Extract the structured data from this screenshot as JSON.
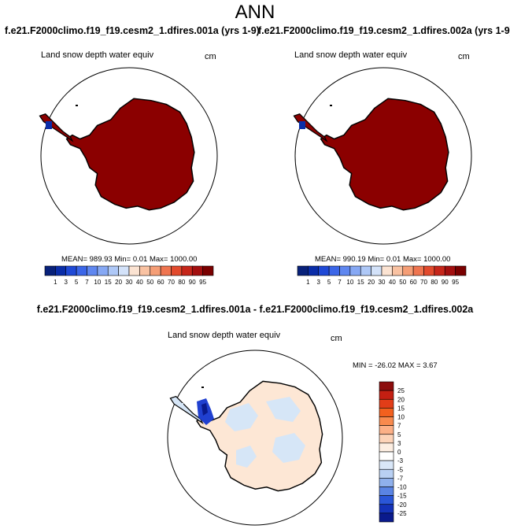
{
  "page": {
    "title": "ANN",
    "case_left": "f.e21.F2000climo.f19_f19.cesm2_1.dfires.001a (yrs 1-9)",
    "case_right": "f.e21.F2000climo.f19_f19.cesm2_1.dfires.002a (yrs 1-9)",
    "diff_title": "f.e21.F2000climo.f19_f19.cesm2_1.dfires.001a - f.e21.F2000climo.f19_f19.cesm2_1.dfires.002a"
  },
  "colors": {
    "land_max": "#8b0000",
    "diff_positive": "#fde7d5",
    "diff_negative": "#d6e6f7",
    "diff_strong_negative": "#2040d0",
    "outline": "#000000"
  },
  "chart_data": [
    {
      "type": "heatmap",
      "variable": "Land snow depth water equiv",
      "units": "cm",
      "projection": "south polar stereographic",
      "stats": "MEAN= 989.93  Min=   0.01  Max= 1000.00",
      "mean": 989.93,
      "min": 0.01,
      "max": 1000.0,
      "colorbar": {
        "labels": [
          "1",
          "3",
          "5",
          "7",
          "10",
          "15",
          "20",
          "30",
          "40",
          "50",
          "60",
          "70",
          "80",
          "90",
          "95"
        ],
        "colors": [
          "#08217a",
          "#0a2da8",
          "#1f49d6",
          "#3b66e8",
          "#5f87f0",
          "#86a8f4",
          "#aec8f7",
          "#d3e2f9",
          "#fbe3d2",
          "#f9c2a2",
          "#f59e76",
          "#ef7550",
          "#e24a2d",
          "#c6261a",
          "#a30f0f",
          "#7a0000"
        ]
      }
    },
    {
      "type": "heatmap",
      "variable": "Land snow depth water equiv",
      "units": "cm",
      "projection": "south polar stereographic",
      "stats": "MEAN= 990.19  Min=   0.01  Max= 1000.00",
      "mean": 990.19,
      "min": 0.01,
      "max": 1000.0,
      "colorbar": {
        "labels": [
          "1",
          "3",
          "5",
          "7",
          "10",
          "15",
          "20",
          "30",
          "40",
          "50",
          "60",
          "70",
          "80",
          "90",
          "95"
        ],
        "colors": [
          "#08217a",
          "#0a2da8",
          "#1f49d6",
          "#3b66e8",
          "#5f87f0",
          "#86a8f4",
          "#aec8f7",
          "#d3e2f9",
          "#fbe3d2",
          "#f9c2a2",
          "#f59e76",
          "#ef7550",
          "#e24a2d",
          "#c6261a",
          "#a30f0f",
          "#7a0000"
        ]
      }
    },
    {
      "type": "heatmap",
      "variable": "Land snow depth water equiv",
      "units": "cm",
      "projection": "south polar stereographic",
      "stats": "MIN = -26.02 MAX =   3.67",
      "min": -26.02,
      "max": 3.67,
      "colorbar": {
        "labels": [
          "25",
          "20",
          "15",
          "10",
          "7",
          "5",
          "3",
          "0",
          "-3",
          "-5",
          "-7",
          "-10",
          "-15",
          "-20",
          "-25"
        ],
        "colors": [
          "#8c0c0c",
          "#c41f12",
          "#e23d18",
          "#f2601e",
          "#f88a4e",
          "#fcb087",
          "#fdd3b8",
          "#fdeee2",
          "#ffffff",
          "#d9e7f8",
          "#b9d0f3",
          "#8fb0ec",
          "#5a84e4",
          "#2a56d8",
          "#1432b8",
          "#0a1a8c"
        ]
      }
    }
  ]
}
